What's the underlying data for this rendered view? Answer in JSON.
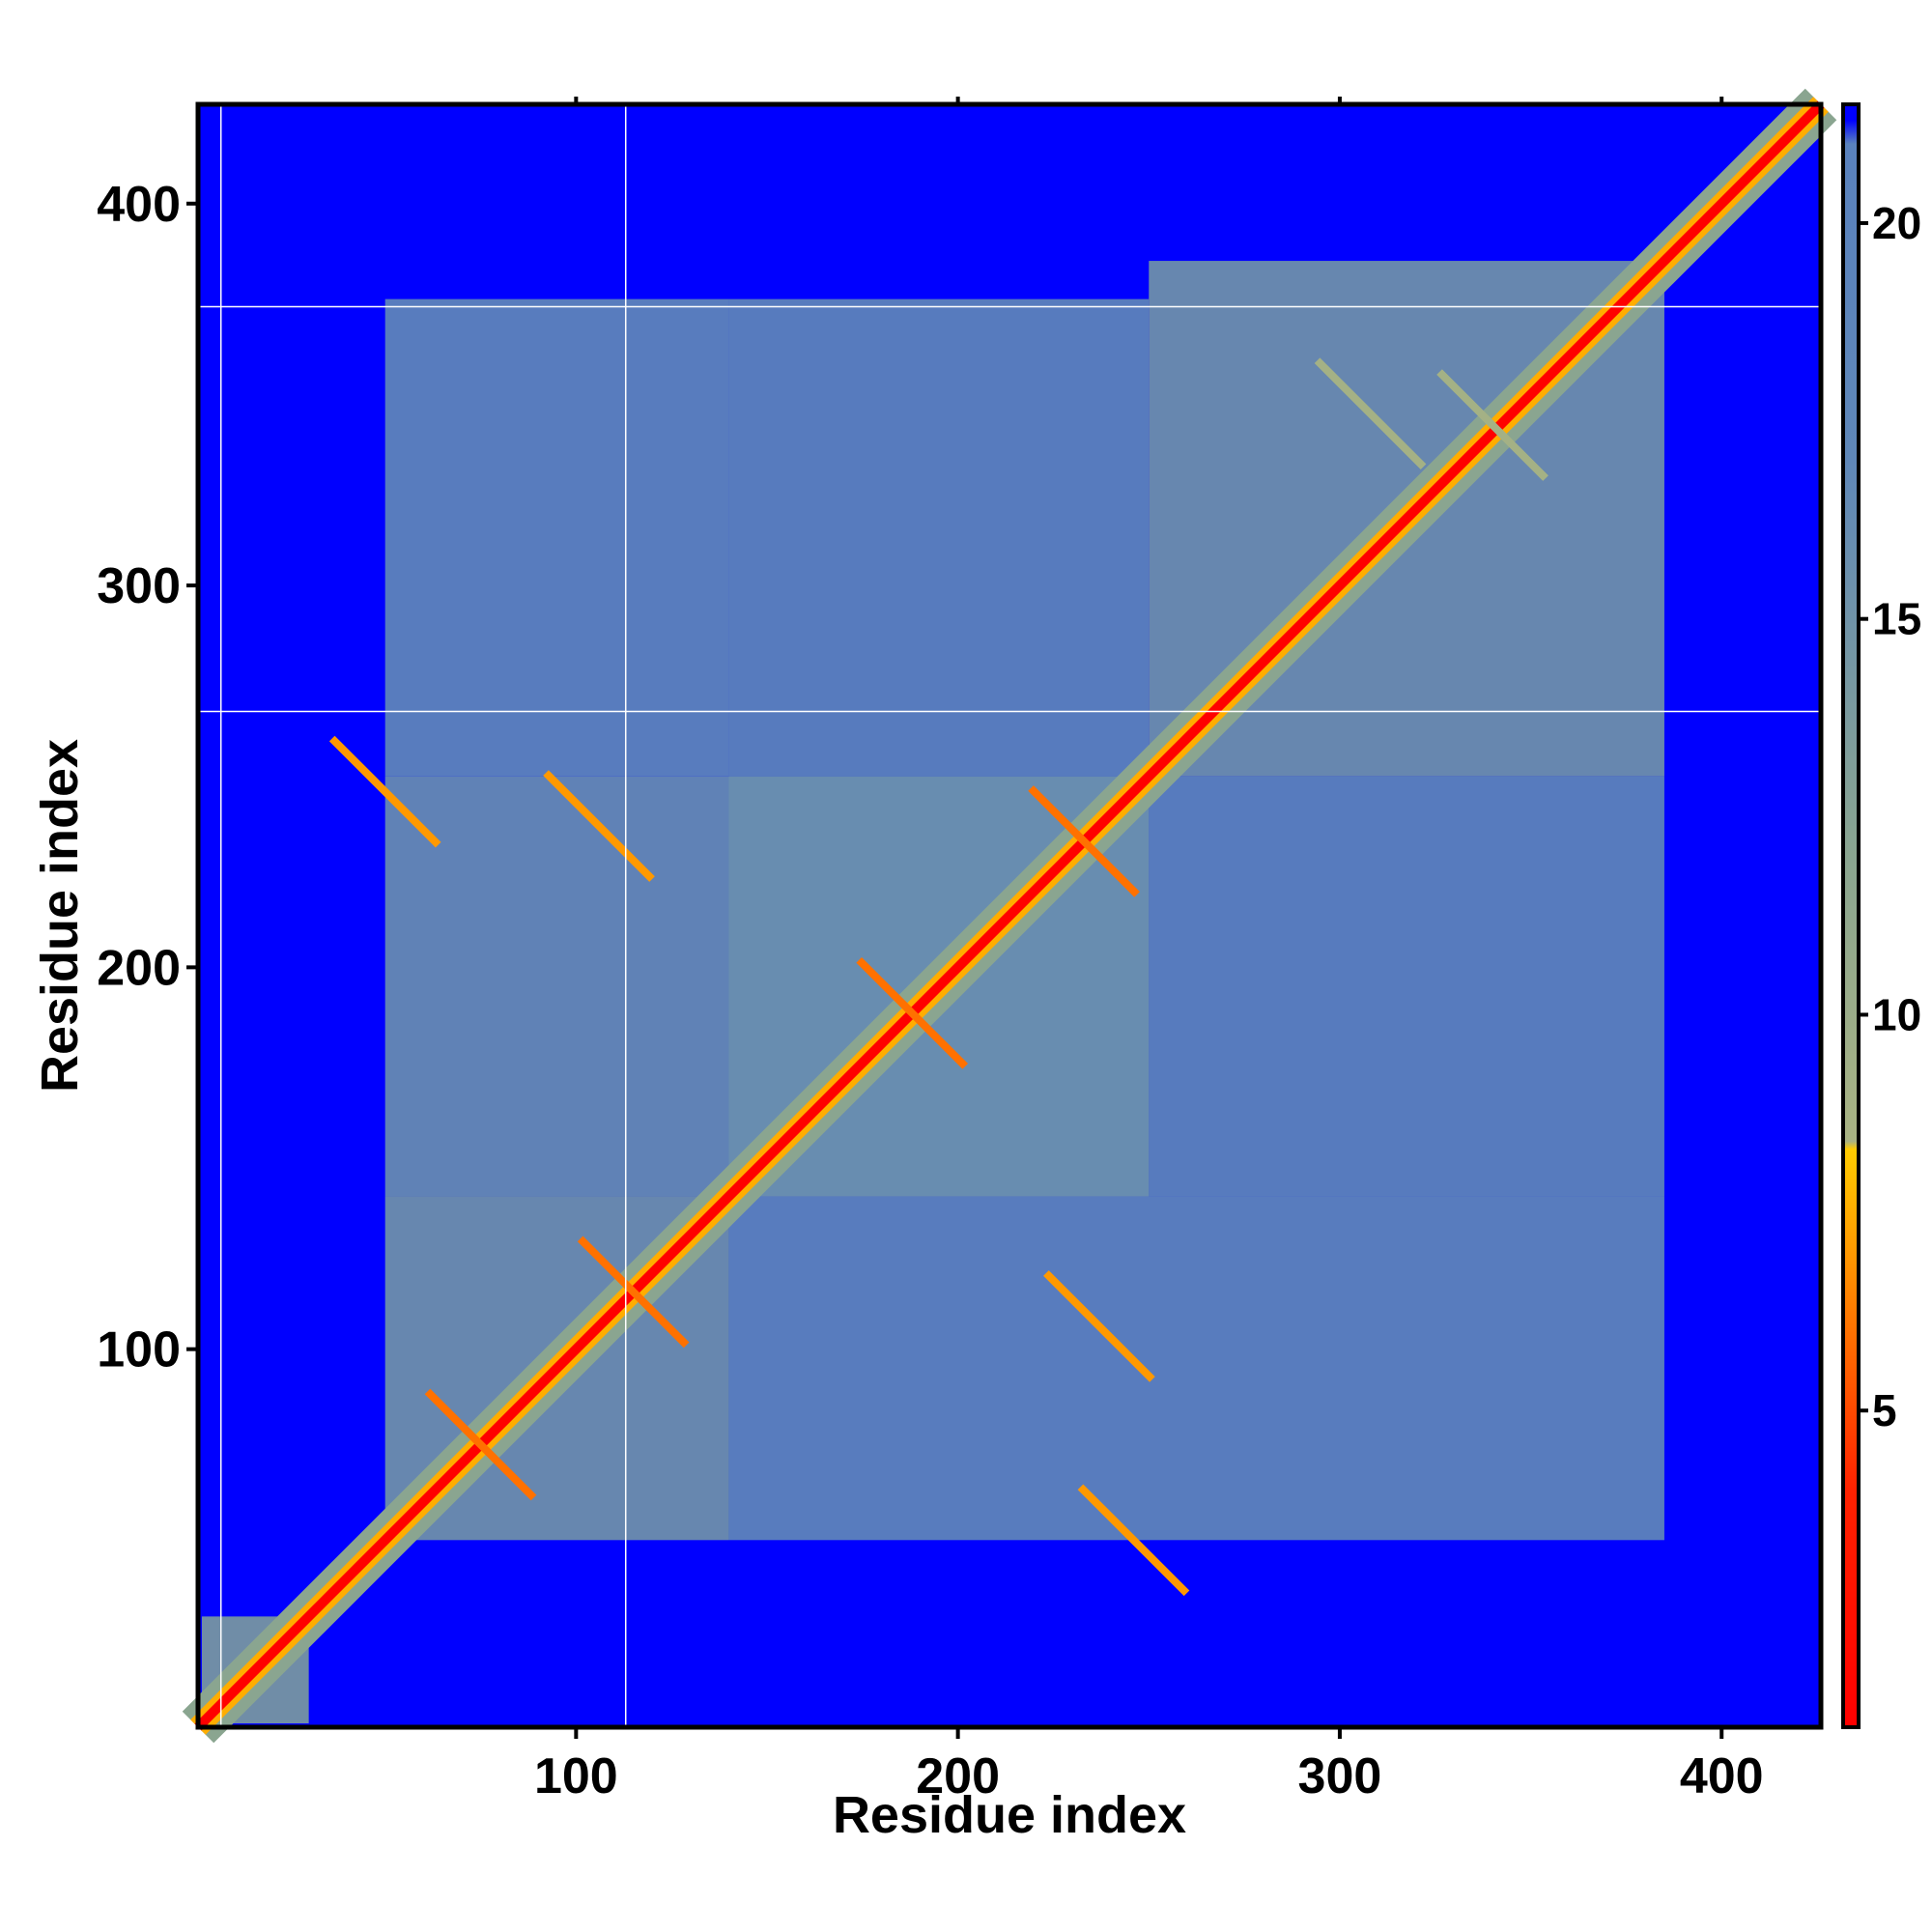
{
  "chart_data": {
    "type": "heatmap",
    "title": "",
    "xlabel": "Residue index",
    "ylabel": "Residue index",
    "xlim": [
      1,
      426
    ],
    "ylim": [
      1,
      426
    ],
    "x_ticks": [
      100,
      200,
      300,
      400
    ],
    "y_ticks": [
      100,
      200,
      300,
      400
    ],
    "colorbar": {
      "ticks": [
        5,
        10,
        15,
        20
      ],
      "range": [
        1,
        21.5
      ],
      "stops": [
        {
          "value": 1,
          "color": "#ff0000"
        },
        {
          "value": 4,
          "color": "#ff2200"
        },
        {
          "value": 7,
          "color": "#ff9900"
        },
        {
          "value": 8.3,
          "color": "#ffcc00"
        },
        {
          "value": 8.4,
          "color": "#a9b383"
        },
        {
          "value": 12,
          "color": "#8aa590"
        },
        {
          "value": 17,
          "color": "#5f87b8"
        },
        {
          "value": 21,
          "color": "#5a82bd"
        },
        {
          "value": 21.3,
          "color": "#0000ff"
        }
      ]
    },
    "background_value": 21.5,
    "background_color": "#0000ff",
    "diagonal": {
      "value": 1,
      "color": "#ff0000"
    },
    "gaps": {
      "x": [
        7,
        113
      ],
      "y": [
        267,
        373
      ]
    },
    "contact_blocks": [
      {
        "x": [
          50,
          140
        ],
        "y": [
          50,
          140
        ],
        "value": 15
      },
      {
        "x": [
          140,
          250
        ],
        "y": [
          140,
          250
        ],
        "value": 15
      },
      {
        "x": [
          250,
          385
        ],
        "y": [
          250,
          385
        ],
        "value": 15
      },
      {
        "x": [
          50,
          250
        ],
        "y": [
          140,
          250
        ],
        "value": 16
      },
      {
        "x": [
          50,
          140
        ],
        "y": [
          250,
          375
        ],
        "value": 17
      },
      {
        "x": [
          140,
          250
        ],
        "y": [
          250,
          375
        ],
        "value": 17.5
      },
      {
        "x": [
          250,
          385
        ],
        "y": [
          140,
          250
        ],
        "value": 17.5
      },
      {
        "x": [
          140,
          385
        ],
        "y": [
          50,
          140
        ],
        "value": 17
      },
      {
        "x": [
          2,
          30
        ],
        "y": [
          2,
          30
        ],
        "value": 14
      }
    ],
    "cross_contacts": [
      {
        "x": 75,
        "y": 75,
        "value": 6
      },
      {
        "x": 115,
        "y": 115,
        "value": 6
      },
      {
        "x": 188,
        "y": 188,
        "value": 6
      },
      {
        "x": 233,
        "y": 233,
        "value": 6
      },
      {
        "x": 106,
        "y": 237,
        "value": 7
      },
      {
        "x": 237,
        "y": 106,
        "value": 7
      },
      {
        "x": 50,
        "y": 246,
        "value": 7
      },
      {
        "x": 246,
        "y": 50,
        "value": 7
      },
      {
        "x": 340,
        "y": 342,
        "value": 9
      },
      {
        "x": 308,
        "y": 345,
        "value": 9
      }
    ]
  }
}
